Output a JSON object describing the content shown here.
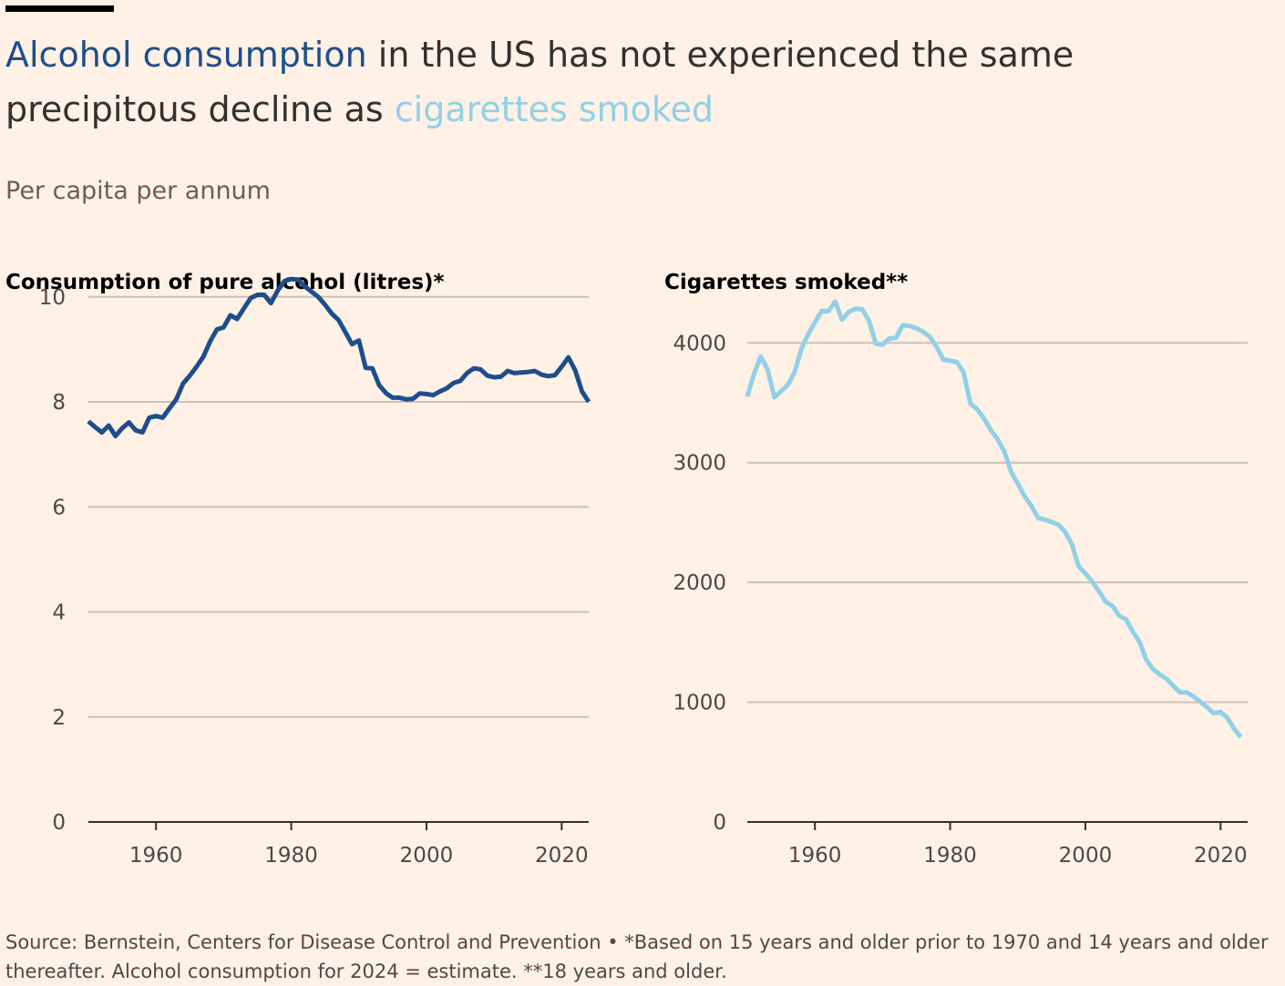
{
  "title": {
    "part1": "Alcohol consumption",
    "part2": " in the US has not experienced the same precipitous decline as ",
    "part3": "cigarettes smoked"
  },
  "subtitle": "Per capita per annum",
  "colors": {
    "alcohol": "#1e4d8c",
    "cigarettes": "#91d0e6",
    "background": "#fff1e5"
  },
  "footer": "Source: Bernstein, Centers for Disease Control and Prevention • *Based on 15 years and older prior to 1970 and 14 years and older thereafter. Alcohol consumption for 2024 = estimate. **18 years and older.",
  "chart_data": [
    {
      "type": "line",
      "title": "Consumption of pure alcohol (litres)*",
      "xlim": [
        1950,
        2024
      ],
      "ylim": [
        0,
        10.5
      ],
      "y_ticks": [
        0,
        2,
        4,
        6,
        8,
        10
      ],
      "x_ticks": [
        1960,
        1980,
        2000,
        2020
      ],
      "grid": true,
      "series": [
        {
          "color": "#1e4d8c",
          "x": [
            1950,
            1951,
            1952,
            1953,
            1954,
            1955,
            1956,
            1957,
            1958,
            1959,
            1960,
            1961,
            1962,
            1963,
            1964,
            1965,
            1966,
            1967,
            1968,
            1969,
            1970,
            1971,
            1972,
            1973,
            1974,
            1975,
            1976,
            1977,
            1978,
            1979,
            1980,
            1981,
            1982,
            1983,
            1984,
            1985,
            1986,
            1987,
            1988,
            1989,
            1990,
            1991,
            1992,
            1993,
            1994,
            1995,
            1996,
            1997,
            1998,
            1999,
            2000,
            2001,
            2002,
            2003,
            2004,
            2005,
            2006,
            2007,
            2008,
            2009,
            2010,
            2011,
            2012,
            2013,
            2014,
            2015,
            2016,
            2017,
            2018,
            2019,
            2020,
            2021,
            2022,
            2023,
            2024
          ],
          "values": [
            7.63,
            7.52,
            7.42,
            7.55,
            7.35,
            7.5,
            7.61,
            7.46,
            7.42,
            7.7,
            7.73,
            7.7,
            7.88,
            8.05,
            8.35,
            8.5,
            8.67,
            8.86,
            9.15,
            9.38,
            9.42,
            9.65,
            9.58,
            9.78,
            9.98,
            10.04,
            10.04,
            9.88,
            10.12,
            10.3,
            10.34,
            10.33,
            10.2,
            10.1,
            10.0,
            9.85,
            9.68,
            9.56,
            9.33,
            9.1,
            9.17,
            8.65,
            8.64,
            8.32,
            8.17,
            8.08,
            8.08,
            8.05,
            8.06,
            8.16,
            8.15,
            8.13,
            8.2,
            8.26,
            8.36,
            8.4,
            8.55,
            8.64,
            8.62,
            8.5,
            8.47,
            8.48,
            8.59,
            8.55,
            8.56,
            8.57,
            8.59,
            8.52,
            8.49,
            8.51,
            8.67,
            8.85,
            8.6,
            8.2,
            8.0
          ]
        }
      ]
    },
    {
      "type": "line",
      "title": "Cigarettes smoked**",
      "xlim": [
        1950,
        2024
      ],
      "ylim": [
        0,
        4200
      ],
      "y_ticks": [
        0,
        1000,
        2000,
        3000,
        4000
      ],
      "x_ticks": [
        1960,
        1980,
        2000,
        2020
      ],
      "grid": true,
      "series": [
        {
          "color": "#91d0e6",
          "x": [
            1950,
            1951,
            1952,
            1953,
            1954,
            1955,
            1956,
            1957,
            1958,
            1959,
            1960,
            1961,
            1962,
            1963,
            1964,
            1965,
            1966,
            1967,
            1968,
            1969,
            1970,
            1971,
            1972,
            1973,
            1974,
            1975,
            1976,
            1977,
            1978,
            1979,
            1980,
            1981,
            1982,
            1983,
            1984,
            1985,
            1986,
            1987,
            1988,
            1989,
            1990,
            1991,
            1992,
            1993,
            1994,
            1995,
            1996,
            1997,
            1998,
            1999,
            2000,
            2001,
            2002,
            2003,
            2004,
            2005,
            2006,
            2007,
            2008,
            2009,
            2010,
            2011,
            2012,
            2013,
            2014,
            2015,
            2016,
            2017,
            2018,
            2019,
            2020,
            2021,
            2022,
            2023
          ],
          "values": [
            3552,
            3744,
            3886,
            3778,
            3546,
            3597,
            3650,
            3755,
            3953,
            4073,
            4171,
            4266,
            4265,
            4345,
            4194,
            4258,
            4287,
            4280,
            4186,
            3993,
            3985,
            4037,
            4043,
            4148,
            4141,
            4123,
            4092,
            4051,
            3967,
            3861,
            3851,
            3840,
            3753,
            3494,
            3446,
            3370,
            3274,
            3197,
            3096,
            2926,
            2826,
            2720,
            2641,
            2539,
            2524,
            2505,
            2482,
            2423,
            2320,
            2136,
            2076,
            2007,
            1927,
            1839,
            1805,
            1722,
            1693,
            1591,
            1505,
            1356,
            1276,
            1232,
            1196,
            1136,
            1081,
            1082,
            1048,
            1003,
            957,
            907,
            918,
            870,
            777,
            708
          ]
        }
      ]
    }
  ]
}
